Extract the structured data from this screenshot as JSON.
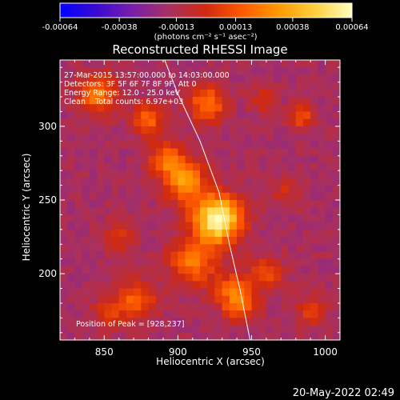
{
  "chart_data": {
    "type": "heatmap",
    "title": "Reconstructed RHESSI Image",
    "xlabel": "Heliocentric X (arcsec)",
    "ylabel": "Heliocentric Y (arcsec)",
    "xlim": [
      820,
      1010
    ],
    "ylim": [
      155,
      345
    ],
    "x_ticks": [
      850,
      900,
      950,
      1000
    ],
    "y_ticks": [
      200,
      250,
      300
    ],
    "colorbar": {
      "range": [
        -0.00064,
        0.00064
      ],
      "tick_values": [
        -0.00064,
        -0.00038,
        -0.00013,
        0.00013,
        0.00038,
        0.00064
      ],
      "tick_labels": [
        "-0.00064",
        "-0.00038",
        "-0.00013",
        "0.00013",
        "0.00038",
        "0.00064"
      ],
      "unit_label": "(photons cm⁻² s⁻¹ asec⁻²)",
      "colormap": [
        "#0000ff",
        "#3a0ad0",
        "#7a1fa8",
        "#a83060",
        "#d02a10",
        "#ff5a00",
        "#ff9a00",
        "#ffd040",
        "#ffffc0"
      ]
    },
    "annotations": {
      "time_range": "27-Mar-2015 13:57:00.000 to 14:03:00.000",
      "detectors": "Detectors: 3F 5F 6F 7F 8F 9F, Att 0",
      "energy_range": "Energy Range: 12.0 - 25.0 keV",
      "method": "Clean    Total counts: 6.97e+03",
      "peak": "Position of Peak = [928,237]"
    },
    "peak_position": [
      928,
      237
    ],
    "limb_curve": [
      [
        891,
        345
      ],
      [
        900,
        322
      ],
      [
        915,
        290
      ],
      [
        928,
        255
      ],
      [
        935,
        220
      ],
      [
        942,
        190
      ],
      [
        949,
        155
      ]
    ],
    "sources": [
      {
        "x": 927,
        "y": 237,
        "amp": 1.0,
        "sigma": 11
      },
      {
        "x": 905,
        "y": 262,
        "amp": 0.55,
        "sigma": 10
      },
      {
        "x": 893,
        "y": 278,
        "amp": 0.45,
        "sigma": 8
      },
      {
        "x": 910,
        "y": 208,
        "amp": 0.45,
        "sigma": 11
      },
      {
        "x": 937,
        "y": 189,
        "amp": 0.35,
        "sigma": 9
      },
      {
        "x": 872,
        "y": 182,
        "amp": 0.4,
        "sigma": 9
      },
      {
        "x": 853,
        "y": 173,
        "amp": 0.3,
        "sigma": 7
      },
      {
        "x": 845,
        "y": 322,
        "amp": 0.5,
        "sigma": 9
      },
      {
        "x": 880,
        "y": 305,
        "amp": 0.4,
        "sigma": 8
      },
      {
        "x": 920,
        "y": 315,
        "amp": 0.45,
        "sigma": 9
      },
      {
        "x": 943,
        "y": 178,
        "amp": 0.35,
        "sigma": 8
      },
      {
        "x": 960,
        "y": 200,
        "amp": 0.3,
        "sigma": 8
      },
      {
        "x": 985,
        "y": 307,
        "amp": 0.35,
        "sigma": 6
      },
      {
        "x": 973,
        "y": 255,
        "amp": 0.18,
        "sigma": 7
      },
      {
        "x": 990,
        "y": 175,
        "amp": 0.25,
        "sigma": 8
      },
      {
        "x": 860,
        "y": 225,
        "amp": 0.22,
        "sigma": 8
      },
      {
        "x": 958,
        "y": 318,
        "amp": 0.22,
        "sigma": 6
      }
    ]
  },
  "footer": {
    "timestamp": "20-May-2022 02:49"
  }
}
